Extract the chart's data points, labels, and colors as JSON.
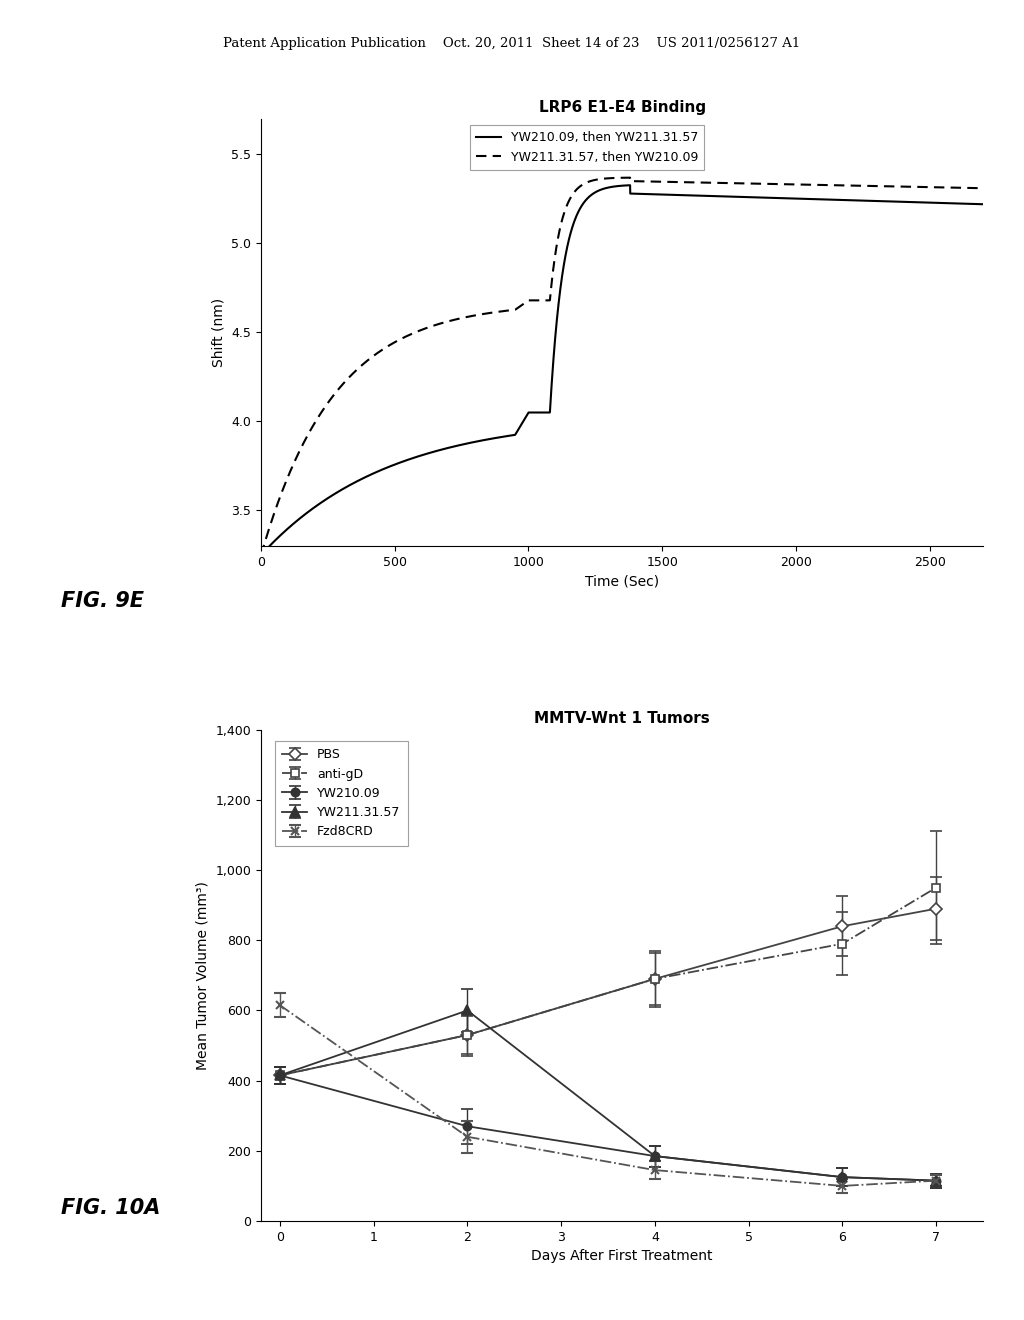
{
  "header_text": "Patent Application Publication    Oct. 20, 2011  Sheet 14 of 23    US 2011/0256127 A1",
  "fig9e_label": "FIG. 9E",
  "fig10a_label": "FIG. 10A",
  "plot1": {
    "title": "LRP6 E1-E4 Binding",
    "xlabel": "Time (Sec)",
    "ylabel": "Shift (nm)",
    "xlim": [
      0,
      2700
    ],
    "ylim": [
      3.3,
      5.7
    ],
    "xticks": [
      0,
      500,
      1000,
      1500,
      2000,
      2500
    ],
    "yticks": [
      3.5,
      4.0,
      4.5,
      5.0,
      5.5
    ],
    "legend": [
      {
        "label": "YW210.09, then YW211.31.57",
        "style": "solid"
      },
      {
        "label": "YW211.31.57, then YW210.09",
        "style": "dashed"
      }
    ]
  },
  "plot2": {
    "title": "MMTV-Wnt 1 Tumors",
    "xlabel": "Days After First Treatment",
    "ylabel": "Mean Tumor Volume (mm³)",
    "xlim": [
      -0.2,
      7.5
    ],
    "ylim": [
      0,
      1400
    ],
    "xticks": [
      0,
      1,
      2,
      3,
      4,
      5,
      6,
      7
    ],
    "yticks": [
      0,
      200,
      400,
      600,
      800,
      1000,
      1200,
      1400
    ],
    "series": [
      {
        "name": "PBS",
        "x": [
          0,
          2,
          4,
          6,
          7
        ],
        "y": [
          415,
          530,
          690,
          840,
          890
        ],
        "yerr": [
          25,
          55,
          75,
          85,
          90
        ],
        "marker": "D",
        "linestyle": "-",
        "color": "#444444",
        "filled": false
      },
      {
        "name": "anti-gD",
        "x": [
          0,
          2,
          4,
          6,
          7
        ],
        "y": [
          415,
          530,
          690,
          790,
          950
        ],
        "yerr": [
          25,
          60,
          80,
          90,
          160
        ],
        "marker": "s",
        "linestyle": "-.",
        "color": "#444444",
        "filled": false
      },
      {
        "name": "YW210.09",
        "x": [
          0,
          2,
          4,
          6,
          7
        ],
        "y": [
          415,
          270,
          185,
          125,
          115
        ],
        "yerr": [
          25,
          50,
          30,
          25,
          20
        ],
        "marker": "o",
        "linestyle": "-",
        "color": "#333333",
        "filled": true
      },
      {
        "name": "YW211.31.57",
        "x": [
          0,
          2,
          4,
          6,
          7
        ],
        "y": [
          415,
          600,
          185,
          125,
          115
        ],
        "yerr": [
          25,
          60,
          30,
          25,
          20
        ],
        "marker": "^",
        "linestyle": "-",
        "color": "#333333",
        "filled": true
      },
      {
        "name": "Fzd8CRD",
        "x": [
          0,
          2,
          4,
          6,
          7
        ],
        "y": [
          615,
          240,
          145,
          100,
          115
        ],
        "yerr": [
          35,
          45,
          25,
          20,
          15
        ],
        "marker": "x",
        "linestyle": "-.",
        "color": "#555555",
        "filled": false
      }
    ]
  }
}
